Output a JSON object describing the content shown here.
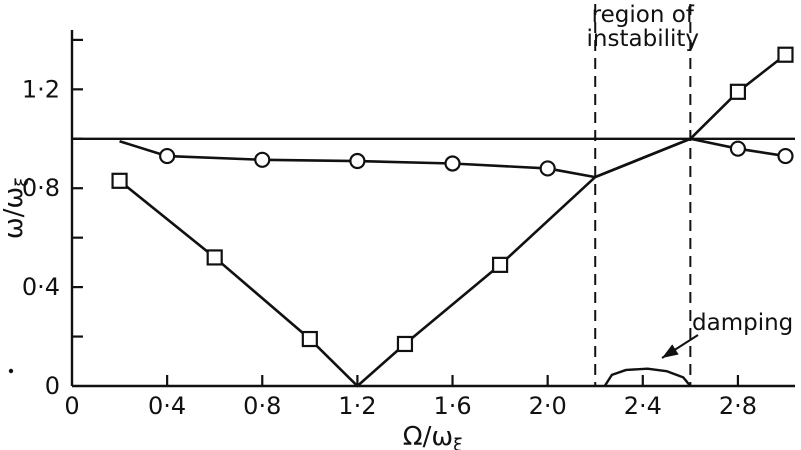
{
  "figure": {
    "description": "Frequency ratio versus rotation speed ratio with region of instability"
  },
  "chart_data": {
    "type": "line",
    "title": "",
    "xlabel": {
      "text": "Ω/ω",
      "sub": "ξ"
    },
    "ylabel": {
      "text": "ω/ω",
      "sub": "ξ"
    },
    "xlim": [
      0,
      3.04
    ],
    "ylim": [
      0,
      1.44
    ],
    "grid": false,
    "x_ticks": [
      {
        "v": 0.0,
        "label": "0"
      },
      {
        "v": 0.4,
        "label": "0·4"
      },
      {
        "v": 0.8,
        "label": "0·8"
      },
      {
        "v": 1.2,
        "label": "1·2"
      },
      {
        "v": 1.6,
        "label": "1·6"
      },
      {
        "v": 2.0,
        "label": "2·0"
      },
      {
        "v": 2.4,
        "label": "2·4"
      },
      {
        "v": 2.8,
        "label": "2·8"
      }
    ],
    "y_ticks_labeled": [
      {
        "v": 0.0,
        "label": "0"
      },
      {
        "v": 0.4,
        "label": "0·4"
      },
      {
        "v": 0.8,
        "label": "0·8"
      },
      {
        "v": 1.2,
        "label": "1·2"
      }
    ],
    "y_ticks_minor": [
      0.2,
      0.4,
      0.6,
      0.8,
      1.0,
      1.2,
      1.4
    ],
    "reference_line_y": 1.0,
    "instability_region": {
      "x_start": 2.2,
      "x_end": 2.6,
      "label_line1": "region of",
      "label_line2": "instability"
    },
    "damping": {
      "label": "damping",
      "bump_points": [
        [
          2.24,
          0
        ],
        [
          2.27,
          0.045
        ],
        [
          2.33,
          0.065
        ],
        [
          2.42,
          0.07
        ],
        [
          2.5,
          0.06
        ],
        [
          2.57,
          0.035
        ],
        [
          2.6,
          0
        ]
      ]
    },
    "series": [
      {
        "name": "circle-marked frequency curve",
        "marker": "circle",
        "points": [
          [
            0.2,
            0.99
          ],
          [
            0.4,
            0.93
          ],
          [
            0.8,
            0.915
          ],
          [
            1.2,
            0.91
          ],
          [
            1.6,
            0.9
          ],
          [
            2.0,
            0.88
          ],
          [
            2.2,
            0.845
          ],
          [
            2.6,
            1.0
          ],
          [
            2.8,
            0.96
          ],
          [
            3.0,
            0.93
          ]
        ],
        "marker_points": [
          [
            0.4,
            0.93
          ],
          [
            0.8,
            0.915
          ],
          [
            1.2,
            0.91
          ],
          [
            1.6,
            0.9
          ],
          [
            2.0,
            0.88
          ],
          [
            2.8,
            0.96
          ],
          [
            3.0,
            0.93
          ]
        ]
      },
      {
        "name": "square-marked frequency curve",
        "marker": "square",
        "points": [
          [
            0.2,
            0.83
          ],
          [
            0.6,
            0.52
          ],
          [
            1.0,
            0.19
          ],
          [
            1.2,
            0.0
          ],
          [
            1.4,
            0.17
          ],
          [
            1.8,
            0.49
          ],
          [
            2.2,
            0.845
          ],
          [
            2.6,
            1.0
          ],
          [
            2.8,
            1.19
          ],
          [
            3.0,
            1.34
          ]
        ],
        "marker_points": [
          [
            0.2,
            0.83
          ],
          [
            0.6,
            0.52
          ],
          [
            1.0,
            0.19
          ],
          [
            1.4,
            0.17
          ],
          [
            1.8,
            0.49
          ],
          [
            2.8,
            1.19
          ],
          [
            3.0,
            1.34
          ]
        ]
      }
    ],
    "colors": {
      "line": "#111111",
      "background": "#ffffff"
    }
  }
}
